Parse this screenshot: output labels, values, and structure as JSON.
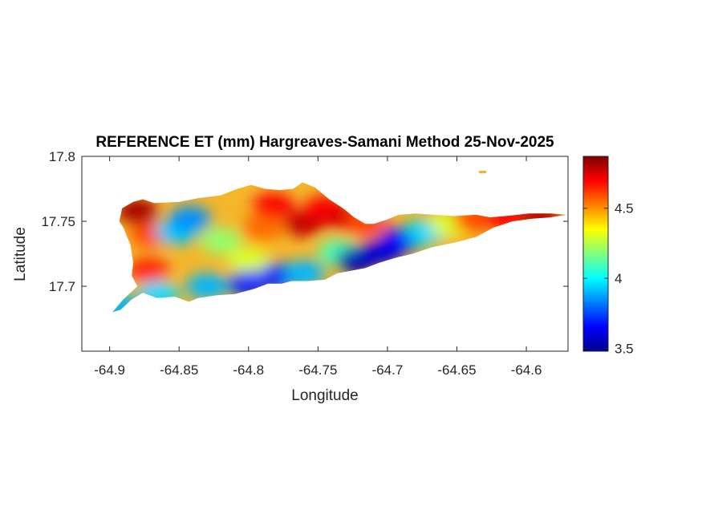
{
  "figure": {
    "title": "REFERENCE ET (mm) Hargreaves-Samani Method  25-Nov-2025",
    "xlabel": "Longitude",
    "ylabel": "Latitude"
  },
  "axes": {
    "xlim": [
      -64.92,
      -64.57
    ],
    "ylim": [
      17.65,
      17.8
    ],
    "xticks": [
      -64.9,
      -64.85,
      -64.8,
      -64.75,
      -64.7,
      -64.65,
      -64.6
    ],
    "xtick_labels": [
      "-64.9",
      "-64.85",
      "-64.8",
      "-64.75",
      "-64.7",
      "-64.65",
      "-64.6"
    ],
    "yticks": [
      17.7,
      17.75,
      17.8
    ],
    "ytick_labels": [
      "17.7",
      "17.75",
      "17.8"
    ],
    "grid": false
  },
  "colorbar": {
    "colormap": "jet",
    "clim": [
      3.48,
      4.87
    ],
    "ticks": [
      3.5,
      4,
      4.5
    ],
    "tick_labels": [
      "3.5",
      "4",
      "4.5"
    ],
    "location": "right"
  },
  "chart_data": {
    "type": "heatmap",
    "title": "REFERENCE ET (mm) Hargreaves-Samani Method  25-Nov-2025",
    "xlabel": "Longitude",
    "ylabel": "Latitude",
    "xlim": [
      -64.92,
      -64.57
    ],
    "ylim": [
      17.65,
      17.8
    ],
    "value_range": [
      3.48,
      4.87
    ],
    "units": "mm",
    "region_outline_lonlat": [
      [
        -64.898,
        17.68
      ],
      [
        -64.892,
        17.682
      ],
      [
        -64.884,
        17.69
      ],
      [
        -64.876,
        17.695
      ],
      [
        -64.866,
        17.691
      ],
      [
        -64.853,
        17.692
      ],
      [
        -64.843,
        17.688
      ],
      [
        -64.836,
        17.691
      ],
      [
        -64.823,
        17.693
      ],
      [
        -64.81,
        17.694
      ],
      [
        -64.796,
        17.698
      ],
      [
        -64.786,
        17.702
      ],
      [
        -64.776,
        17.702
      ],
      [
        -64.769,
        17.704
      ],
      [
        -64.758,
        17.704
      ],
      [
        -64.745,
        17.705
      ],
      [
        -64.736,
        17.71
      ],
      [
        -64.726,
        17.712
      ],
      [
        -64.716,
        17.714
      ],
      [
        -64.706,
        17.718
      ],
      [
        -64.694,
        17.722
      ],
      [
        -64.682,
        17.725
      ],
      [
        -64.668,
        17.73
      ],
      [
        -64.65,
        17.734
      ],
      [
        -64.636,
        17.738
      ],
      [
        -64.624,
        17.745
      ],
      [
        -64.61,
        17.75
      ],
      [
        -64.596,
        17.752
      ],
      [
        -64.583,
        17.753
      ],
      [
        -64.571,
        17.755
      ],
      [
        -64.582,
        17.756
      ],
      [
        -64.598,
        17.756
      ],
      [
        -64.615,
        17.754
      ],
      [
        -64.626,
        17.753
      ],
      [
        -64.636,
        17.755
      ],
      [
        -64.652,
        17.754
      ],
      [
        -64.666,
        17.755
      ],
      [
        -64.68,
        17.756
      ],
      [
        -64.692,
        17.755
      ],
      [
        -64.701,
        17.751
      ],
      [
        -64.71,
        17.748
      ],
      [
        -64.716,
        17.748
      ],
      [
        -64.724,
        17.753
      ],
      [
        -64.732,
        17.76
      ],
      [
        -64.742,
        17.767
      ],
      [
        -64.752,
        17.776
      ],
      [
        -64.761,
        17.78
      ],
      [
        -64.768,
        17.775
      ],
      [
        -64.778,
        17.774
      ],
      [
        -64.788,
        17.775
      ],
      [
        -64.798,
        17.778
      ],
      [
        -64.808,
        17.775
      ],
      [
        -64.82,
        17.77
      ],
      [
        -64.835,
        17.768
      ],
      [
        -64.85,
        17.765
      ],
      [
        -64.868,
        17.764
      ],
      [
        -64.876,
        17.767
      ],
      [
        -64.883,
        17.765
      ],
      [
        -64.891,
        17.76
      ],
      [
        -64.893,
        17.75
      ],
      [
        -64.89,
        17.745
      ],
      [
        -64.885,
        17.732
      ],
      [
        -64.883,
        17.718
      ],
      [
        -64.884,
        17.708
      ],
      [
        -64.88,
        17.7
      ],
      [
        -64.89,
        17.69
      ],
      [
        -64.898,
        17.68
      ]
    ],
    "value_pattern": [
      {
        "lon": -64.88,
        "lat": 17.758,
        "et": 4.82
      },
      {
        "lon": -64.87,
        "lat": 17.74,
        "et": 4.6
      },
      {
        "lon": -64.872,
        "lat": 17.712,
        "et": 4.65
      },
      {
        "lon": -64.852,
        "lat": 17.742,
        "et": 3.92
      },
      {
        "lon": -64.842,
        "lat": 17.752,
        "et": 3.85
      },
      {
        "lon": -64.82,
        "lat": 17.735,
        "et": 4.2
      },
      {
        "lon": -64.8,
        "lat": 17.72,
        "et": 4.3
      },
      {
        "lon": -64.79,
        "lat": 17.745,
        "et": 4.55
      },
      {
        "lon": -64.782,
        "lat": 17.762,
        "et": 4.7
      },
      {
        "lon": -64.76,
        "lat": 17.748,
        "et": 4.78
      },
      {
        "lon": -64.745,
        "lat": 17.76,
        "et": 4.7
      },
      {
        "lon": -64.73,
        "lat": 17.752,
        "et": 4.75
      },
      {
        "lon": -64.715,
        "lat": 17.748,
        "et": 4.6
      },
      {
        "lon": -64.735,
        "lat": 17.726,
        "et": 4.1
      },
      {
        "lon": -64.722,
        "lat": 17.72,
        "et": 3.55
      },
      {
        "lon": -64.705,
        "lat": 17.726,
        "et": 3.6
      },
      {
        "lon": -64.69,
        "lat": 17.736,
        "et": 3.65
      },
      {
        "lon": -64.672,
        "lat": 17.742,
        "et": 3.95
      },
      {
        "lon": -64.655,
        "lat": 17.748,
        "et": 4.3
      },
      {
        "lon": -64.638,
        "lat": 17.752,
        "et": 4.6
      },
      {
        "lon": -64.615,
        "lat": 17.753,
        "et": 4.7
      },
      {
        "lon": -64.59,
        "lat": 17.754,
        "et": 4.8
      },
      {
        "lon": -64.865,
        "lat": 17.694,
        "et": 3.95
      },
      {
        "lon": -64.83,
        "lat": 17.7,
        "et": 3.9
      },
      {
        "lon": -64.8,
        "lat": 17.702,
        "et": 3.7
      },
      {
        "lon": -64.778,
        "lat": 17.708,
        "et": 3.7
      },
      {
        "lon": -64.76,
        "lat": 17.71,
        "et": 3.9
      },
      {
        "lon": -64.893,
        "lat": 17.684,
        "et": 3.9
      }
    ]
  }
}
